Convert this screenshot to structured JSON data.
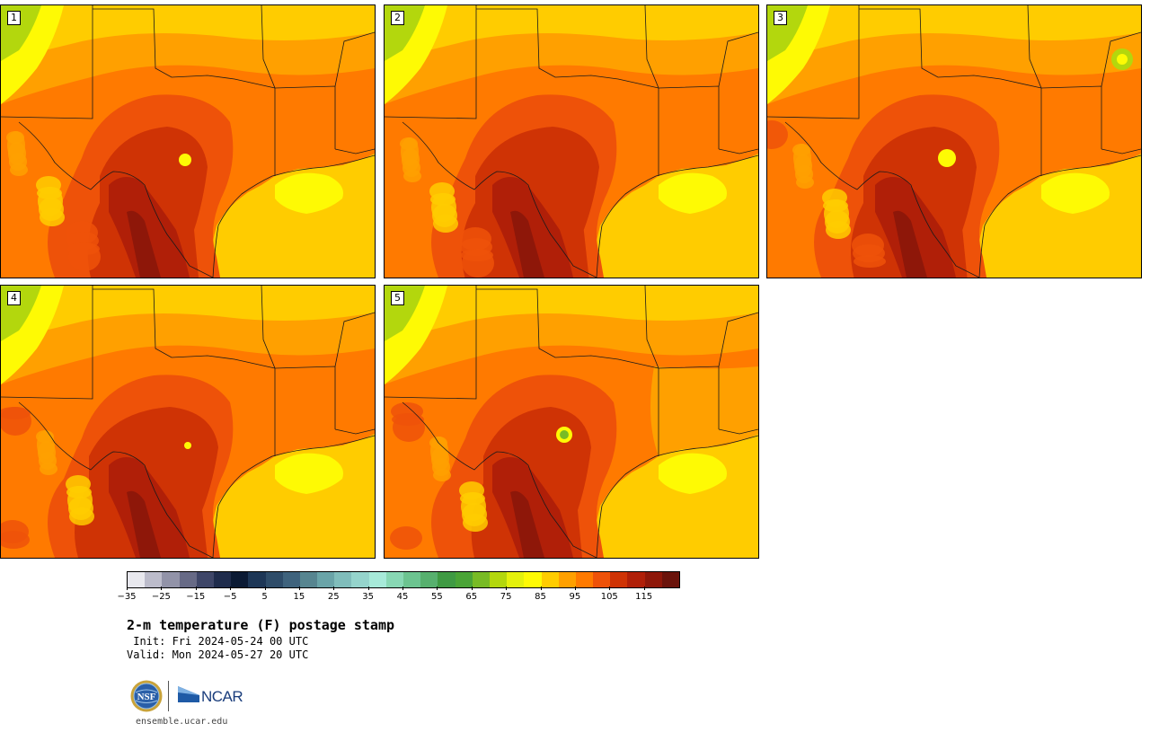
{
  "panels": [
    {
      "label": "1",
      "variant": 1
    },
    {
      "label": "2",
      "variant": 2
    },
    {
      "label": "3",
      "variant": 3
    },
    {
      "label": "4",
      "variant": 4
    },
    {
      "label": "5",
      "variant": 5
    }
  ],
  "colorbar": {
    "min": -35,
    "max": 120,
    "step": 5,
    "tick_labels": [
      "−35",
      "−25",
      "−15",
      "−5",
      "5",
      "15",
      "25",
      "35",
      "45",
      "55",
      "65",
      "75",
      "85",
      "95",
      "105",
      "115"
    ],
    "colors": [
      "#e8e8ee",
      "#bcbccb",
      "#9293a8",
      "#676a86",
      "#3e4668",
      "#1f2c4c",
      "#0b1a34",
      "#1d3656",
      "#2e4c69",
      "#3f637d",
      "#578590",
      "#6aa4a8",
      "#80bdbb",
      "#95d4cc",
      "#a7ead9",
      "#88d8b4",
      "#6cc490",
      "#57b06e",
      "#3f9a43",
      "#4aa436",
      "#78bb25",
      "#b3d70d",
      "#e4f10c",
      "#fefa04",
      "#ffcc00",
      "#ffa000",
      "#ff7a00",
      "#ee5209",
      "#cf3305",
      "#b01f08",
      "#8e1709",
      "#6a130b"
    ]
  },
  "title": "2-m temperature (F) postage stamp",
  "init": " Init: Fri 2024-05-24 00 UTC",
  "valid": "Valid: Mon 2024-05-27 20 UTC",
  "logos": {
    "nsf": "NSF",
    "ncar": "NCAR"
  },
  "site": "ensemble.ucar.edu"
}
